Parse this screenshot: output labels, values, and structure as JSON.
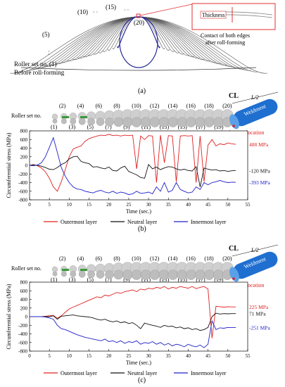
{
  "panel_a": {
    "roller_label": "Roller set no.",
    "before_label": "Before roll-forming",
    "stage_labels": [
      "(1)",
      "(5)",
      "(10)",
      "(15)",
      "(20)"
    ],
    "thickness_label": "Thickness",
    "contact_label_1": "Contact of both edges",
    "contact_label_2": "after roll-forming",
    "caption": "(a)",
    "colors": {
      "curves": "#555555",
      "final": "#2a2a9a",
      "callout": "#e03030"
    }
  },
  "roller_nums": {
    "top": [
      "(2)",
      "(4)",
      "(6)",
      "(8)",
      "(10)",
      "(12)",
      "(14)",
      "(16)",
      "(18)",
      "(20)"
    ],
    "bottom": [
      "(1)",
      "(3)",
      "(5)",
      "(7)",
      "(9)",
      "(11)",
      "(13)",
      "(15)",
      "(17)",
      "(19)"
    ],
    "label": "Roller set no."
  },
  "weldment": {
    "name": "Weldment",
    "cl": "CL",
    "half": "L/2",
    "eval": "Evaluation location",
    "color": "#1e6fd0"
  },
  "chart_data": [
    {
      "type": "line",
      "panel": "(b)",
      "xlabel": "Time (sec.)",
      "ylabel": "Circumferential stress (MPa)",
      "xlim": [
        0,
        55
      ],
      "ylim": [
        -800,
        800
      ],
      "xticks": [
        0,
        5,
        10,
        15,
        20,
        25,
        30,
        35,
        40,
        45,
        50,
        55
      ],
      "yticks": [
        -800,
        -600,
        -400,
        -200,
        0,
        200,
        400,
        600,
        800
      ],
      "series": [
        {
          "name": "Outermost layer",
          "color": "#e02020",
          "x": [
            0,
            1,
            2,
            3,
            4,
            5,
            6,
            7,
            8,
            9,
            10,
            11,
            12,
            13,
            14,
            15,
            16,
            17,
            18,
            19,
            20,
            21,
            22,
            23,
            24,
            25,
            26,
            27,
            28,
            29,
            30,
            31,
            32,
            33,
            34,
            35,
            36,
            37,
            38,
            39,
            40,
            41,
            42,
            43,
            44,
            45,
            46,
            47,
            48,
            49,
            50,
            51,
            52
          ],
          "y": [
            0,
            20,
            -10,
            -60,
            -150,
            -300,
            -500,
            -600,
            -380,
            -100,
            200,
            380,
            420,
            450,
            560,
            620,
            650,
            680,
            700,
            690,
            720,
            690,
            700,
            680,
            700,
            690,
            700,
            -80,
            680,
            600,
            690,
            680,
            -400,
            700,
            60,
            690,
            680,
            -380,
            680,
            690,
            680,
            690,
            -400,
            680,
            -380,
            470,
            600,
            450,
            500,
            480,
            520,
            500,
            488
          ]
        },
        {
          "name": "Neutral layer",
          "color": "#111111",
          "x": [
            0,
            1,
            2,
            3,
            4,
            5,
            6,
            7,
            8,
            9,
            10,
            11,
            12,
            13,
            14,
            15,
            16,
            17,
            18,
            19,
            20,
            21,
            22,
            23,
            24,
            25,
            26,
            27,
            28,
            29,
            30,
            31,
            32,
            33,
            34,
            35,
            36,
            37,
            38,
            39,
            40,
            41,
            42,
            43,
            44,
            45,
            46,
            47,
            48,
            49,
            50,
            51,
            52
          ],
          "y": [
            0,
            10,
            0,
            -20,
            -50,
            -90,
            -100,
            -50,
            20,
            60,
            150,
            200,
            210,
            90,
            60,
            40,
            -40,
            -30,
            -60,
            -80,
            -40,
            -120,
            -130,
            -60,
            -20,
            -140,
            -180,
            -220,
            -280,
            -300,
            20,
            -80,
            -40,
            -100,
            -60,
            -30,
            -40,
            -80,
            -110,
            -90,
            -120,
            -130,
            -30,
            -500,
            -60,
            -90,
            -110,
            -100,
            -130,
            -120,
            -140,
            -125,
            -120
          ]
        },
        {
          "name": "Innermost layer",
          "color": "#2020c8",
          "x": [
            0,
            1,
            2,
            3,
            4,
            5,
            6,
            7,
            8,
            9,
            10,
            11,
            12,
            13,
            14,
            15,
            16,
            17,
            18,
            19,
            20,
            21,
            22,
            23,
            24,
            25,
            26,
            27,
            28,
            29,
            30,
            31,
            32,
            33,
            34,
            35,
            36,
            37,
            38,
            39,
            40,
            41,
            42,
            43,
            44,
            45,
            46,
            47,
            48,
            49,
            50,
            51,
            52
          ],
          "y": [
            0,
            -10,
            10,
            60,
            200,
            420,
            640,
            300,
            -50,
            -250,
            -400,
            -500,
            -550,
            -560,
            -600,
            -620,
            -640,
            -600,
            -580,
            -620,
            -640,
            -600,
            -650,
            -620,
            -640,
            -680,
            -660,
            -600,
            -650,
            -640,
            -620,
            -660,
            -500,
            -600,
            -400,
            -620,
            -580,
            -400,
            -560,
            -600,
            -640,
            -620,
            -500,
            -560,
            -400,
            -450,
            -400,
            -380,
            -350,
            -380,
            -400,
            -390,
            -393
          ]
        }
      ],
      "end_labels": [
        "488 MPa",
        "-120 MPa",
        "-393 MPa"
      ]
    },
    {
      "type": "line",
      "panel": "(c)",
      "xlabel": "Time (sec.)",
      "ylabel": "Circumferential stress (MPa)",
      "xlim": [
        0,
        55
      ],
      "ylim": [
        -800,
        800
      ],
      "xticks": [
        0,
        5,
        10,
        15,
        20,
        25,
        30,
        35,
        40,
        45,
        50,
        55
      ],
      "yticks": [
        -800,
        -600,
        -400,
        -200,
        0,
        200,
        400,
        600,
        800
      ],
      "series": [
        {
          "name": "Outermost layer",
          "color": "#e02020",
          "x": [
            0,
            1,
            2,
            3,
            4,
            5,
            6,
            7,
            8,
            9,
            10,
            11,
            12,
            13,
            14,
            15,
            16,
            17,
            18,
            19,
            20,
            21,
            22,
            23,
            24,
            25,
            26,
            27,
            28,
            29,
            30,
            31,
            32,
            33,
            34,
            35,
            36,
            37,
            38,
            39,
            40,
            41,
            42,
            43,
            44,
            45,
            46,
            47,
            48,
            49,
            50,
            51,
            52
          ],
          "y": [
            0,
            0,
            0,
            0,
            10,
            20,
            30,
            -40,
            20,
            100,
            180,
            220,
            260,
            300,
            340,
            380,
            420,
            460,
            440,
            500,
            480,
            520,
            560,
            540,
            580,
            600,
            620,
            580,
            640,
            620,
            660,
            640,
            680,
            660,
            700,
            640,
            680,
            660,
            700,
            680,
            660,
            700,
            650,
            680,
            700,
            640,
            -500,
            240,
            230,
            220,
            230,
            225,
            225
          ]
        },
        {
          "name": "Neutral layer",
          "color": "#111111",
          "x": [
            0,
            1,
            2,
            3,
            4,
            5,
            6,
            7,
            8,
            9,
            10,
            11,
            12,
            13,
            14,
            15,
            16,
            17,
            18,
            19,
            20,
            21,
            22,
            23,
            24,
            25,
            26,
            27,
            28,
            29,
            30,
            31,
            32,
            33,
            34,
            35,
            36,
            37,
            38,
            39,
            40,
            41,
            42,
            43,
            44,
            45,
            46,
            47,
            48,
            49,
            50,
            51,
            52
          ],
          "y": [
            0,
            0,
            0,
            0,
            0,
            0,
            20,
            -60,
            10,
            20,
            30,
            40,
            20,
            10,
            0,
            -10,
            -30,
            -60,
            -80,
            -60,
            -100,
            -120,
            -100,
            -140,
            -120,
            -160,
            -140,
            -200,
            -280,
            -150,
            -180,
            -200,
            -220,
            -250,
            -200,
            -230,
            -220,
            -260,
            -240,
            -280,
            -260,
            -300,
            -280,
            -320,
            -300,
            -250,
            0,
            80,
            60,
            70,
            65,
            70,
            71
          ]
        },
        {
          "name": "Innermost layer",
          "color": "#2020c8",
          "x": [
            0,
            1,
            2,
            3,
            4,
            5,
            6,
            7,
            8,
            9,
            10,
            11,
            12,
            13,
            14,
            15,
            16,
            17,
            18,
            19,
            20,
            21,
            22,
            23,
            24,
            25,
            26,
            27,
            28,
            29,
            30,
            31,
            32,
            33,
            34,
            35,
            36,
            37,
            38,
            39,
            40,
            41,
            42,
            43,
            44,
            45,
            46,
            47,
            48,
            49,
            50,
            51,
            52
          ],
          "y": [
            0,
            0,
            0,
            0,
            -10,
            -30,
            -60,
            -200,
            -280,
            -300,
            -340,
            -380,
            -420,
            -450,
            -480,
            -500,
            -520,
            -540,
            -560,
            -520,
            -580,
            -560,
            -600,
            -560,
            -620,
            -580,
            -600,
            -560,
            -640,
            -600,
            -620,
            -580,
            -640,
            -600,
            -660,
            -620,
            -680,
            -640,
            -660,
            -700,
            -640,
            -680,
            -700,
            -660,
            -720,
            -640,
            -100,
            -300,
            -260,
            -270,
            -250,
            -255,
            -251
          ]
        }
      ],
      "end_labels": [
        "225 MPa",
        "71 MPa",
        "-251 MPa"
      ]
    }
  ]
}
